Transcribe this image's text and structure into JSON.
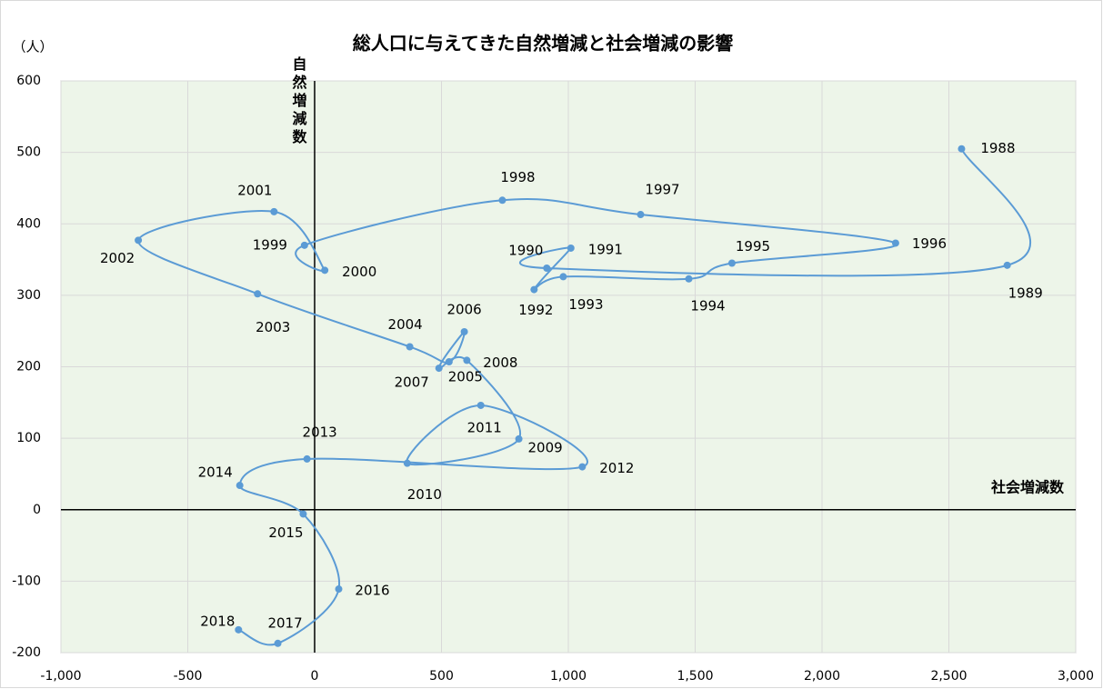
{
  "chart_data": {
    "type": "connected_scatter",
    "title": "総人口に与えてきた自然増減と社会増減の影響",
    "unit_label": "（人）",
    "x_axis_label": "社会増減数",
    "y_axis_label": "自然増減数",
    "point_labels": [
      "1988",
      "1989",
      "1990",
      "1991",
      "1992",
      "1993",
      "1994",
      "1995",
      "1996",
      "1997",
      "1998",
      "1999",
      "2000",
      "2001",
      "2002",
      "2003",
      "2004",
      "2005",
      "2006",
      "2007",
      "2008",
      "2009",
      "2010",
      "2011",
      "2012",
      "2013",
      "2014",
      "2015",
      "2016",
      "2017",
      "2018"
    ],
    "x": [
      2550,
      2730,
      915,
      1010,
      865,
      980,
      1475,
      1645,
      2290,
      1285,
      740,
      -40,
      40,
      -160,
      -695,
      -225,
      375,
      530,
      590,
      490,
      600,
      805,
      365,
      655,
      1055,
      -30,
      -295,
      -45,
      95,
      -145,
      -300
    ],
    "values": [
      505,
      342,
      338,
      366,
      308,
      326,
      323,
      345,
      373,
      413,
      433,
      370,
      335,
      417,
      377,
      302,
      228,
      207,
      249,
      198,
      209,
      99,
      65,
      146,
      60,
      71,
      34,
      -6,
      -111,
      -187,
      -168
    ],
    "color": "#5b9bd5",
    "plot_background": "#edf5e9",
    "negative_tick_color": "#ff0000",
    "grid": true,
    "xlim": [
      -1000,
      3000
    ],
    "xticks": [
      {
        "value": -1000,
        "label": "-1,000"
      },
      -500,
      0,
      500,
      {
        "value": 1000,
        "label": "1,000"
      },
      {
        "value": 1500,
        "label": "1,500"
      },
      {
        "value": 2000,
        "label": "2,000"
      },
      {
        "value": 2500,
        "label": "2,500"
      },
      {
        "value": 3000,
        "label": "3,000"
      }
    ],
    "ylim": [
      -200,
      600
    ],
    "yticks": [
      -200,
      -100,
      0,
      100,
      200,
      300,
      400,
      500,
      600
    ]
  }
}
